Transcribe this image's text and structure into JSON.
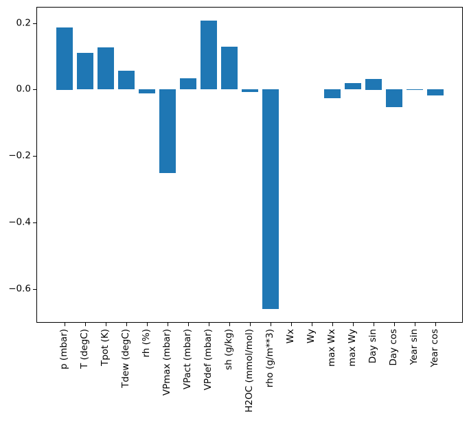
{
  "figure": {
    "background": "#ffffff",
    "bar_color": "#1f77b4",
    "axis_color": "#000000",
    "text_color": "#000000"
  },
  "chart_data": {
    "type": "bar",
    "title": "",
    "xlabel": "",
    "ylabel": "",
    "grid": false,
    "legend": null,
    "categories": [
      "p (mbar)",
      "T (degC)",
      "Tpot (K)",
      "Tdew (degC)",
      "rh (%)",
      "VPmax (mbar)",
      "VPact (mbar)",
      "VPdef (mbar)",
      "sh (g/kg)",
      "H2OC (mmol/mol)",
      "rho (g/m**3)",
      "Wx",
      "Wy",
      "max Wx",
      "max Wy",
      "Day sin",
      "Day cos",
      "Year sin",
      "Year cos"
    ],
    "values": [
      0.187,
      0.11,
      0.127,
      0.056,
      -0.012,
      -0.252,
      0.035,
      0.208,
      0.13,
      -0.007,
      -0.661,
      0.0,
      0.0,
      -0.027,
      0.019,
      0.033,
      -0.052,
      0.002,
      -0.018
    ],
    "xlim": [
      -1.35,
      19.35
    ],
    "ylim": [
      -0.702,
      0.249
    ],
    "bar_width_fraction": 0.8,
    "yticks": [
      0.2,
      0.0,
      -0.2,
      -0.4,
      -0.6
    ],
    "ytick_labels": [
      "0.2",
      "0.0",
      "−0.2",
      "−0.4",
      "−0.6"
    ],
    "xtick_rotation_deg": 90
  }
}
